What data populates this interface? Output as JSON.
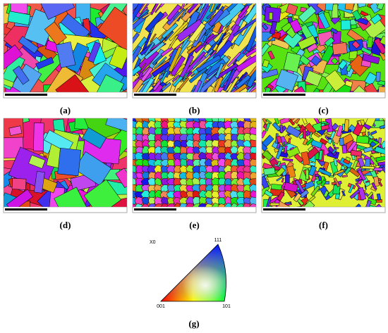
{
  "panels": [
    {
      "label": "(a)"
    },
    {
      "label": "(b)"
    },
    {
      "label": "(c)"
    },
    {
      "label": "(d)"
    },
    {
      "label": "(e)"
    },
    {
      "label": "(f)"
    }
  ],
  "legend": {
    "label": "(g)",
    "axis_label": "X0",
    "corners": [
      "001",
      "101",
      "111"
    ]
  }
}
